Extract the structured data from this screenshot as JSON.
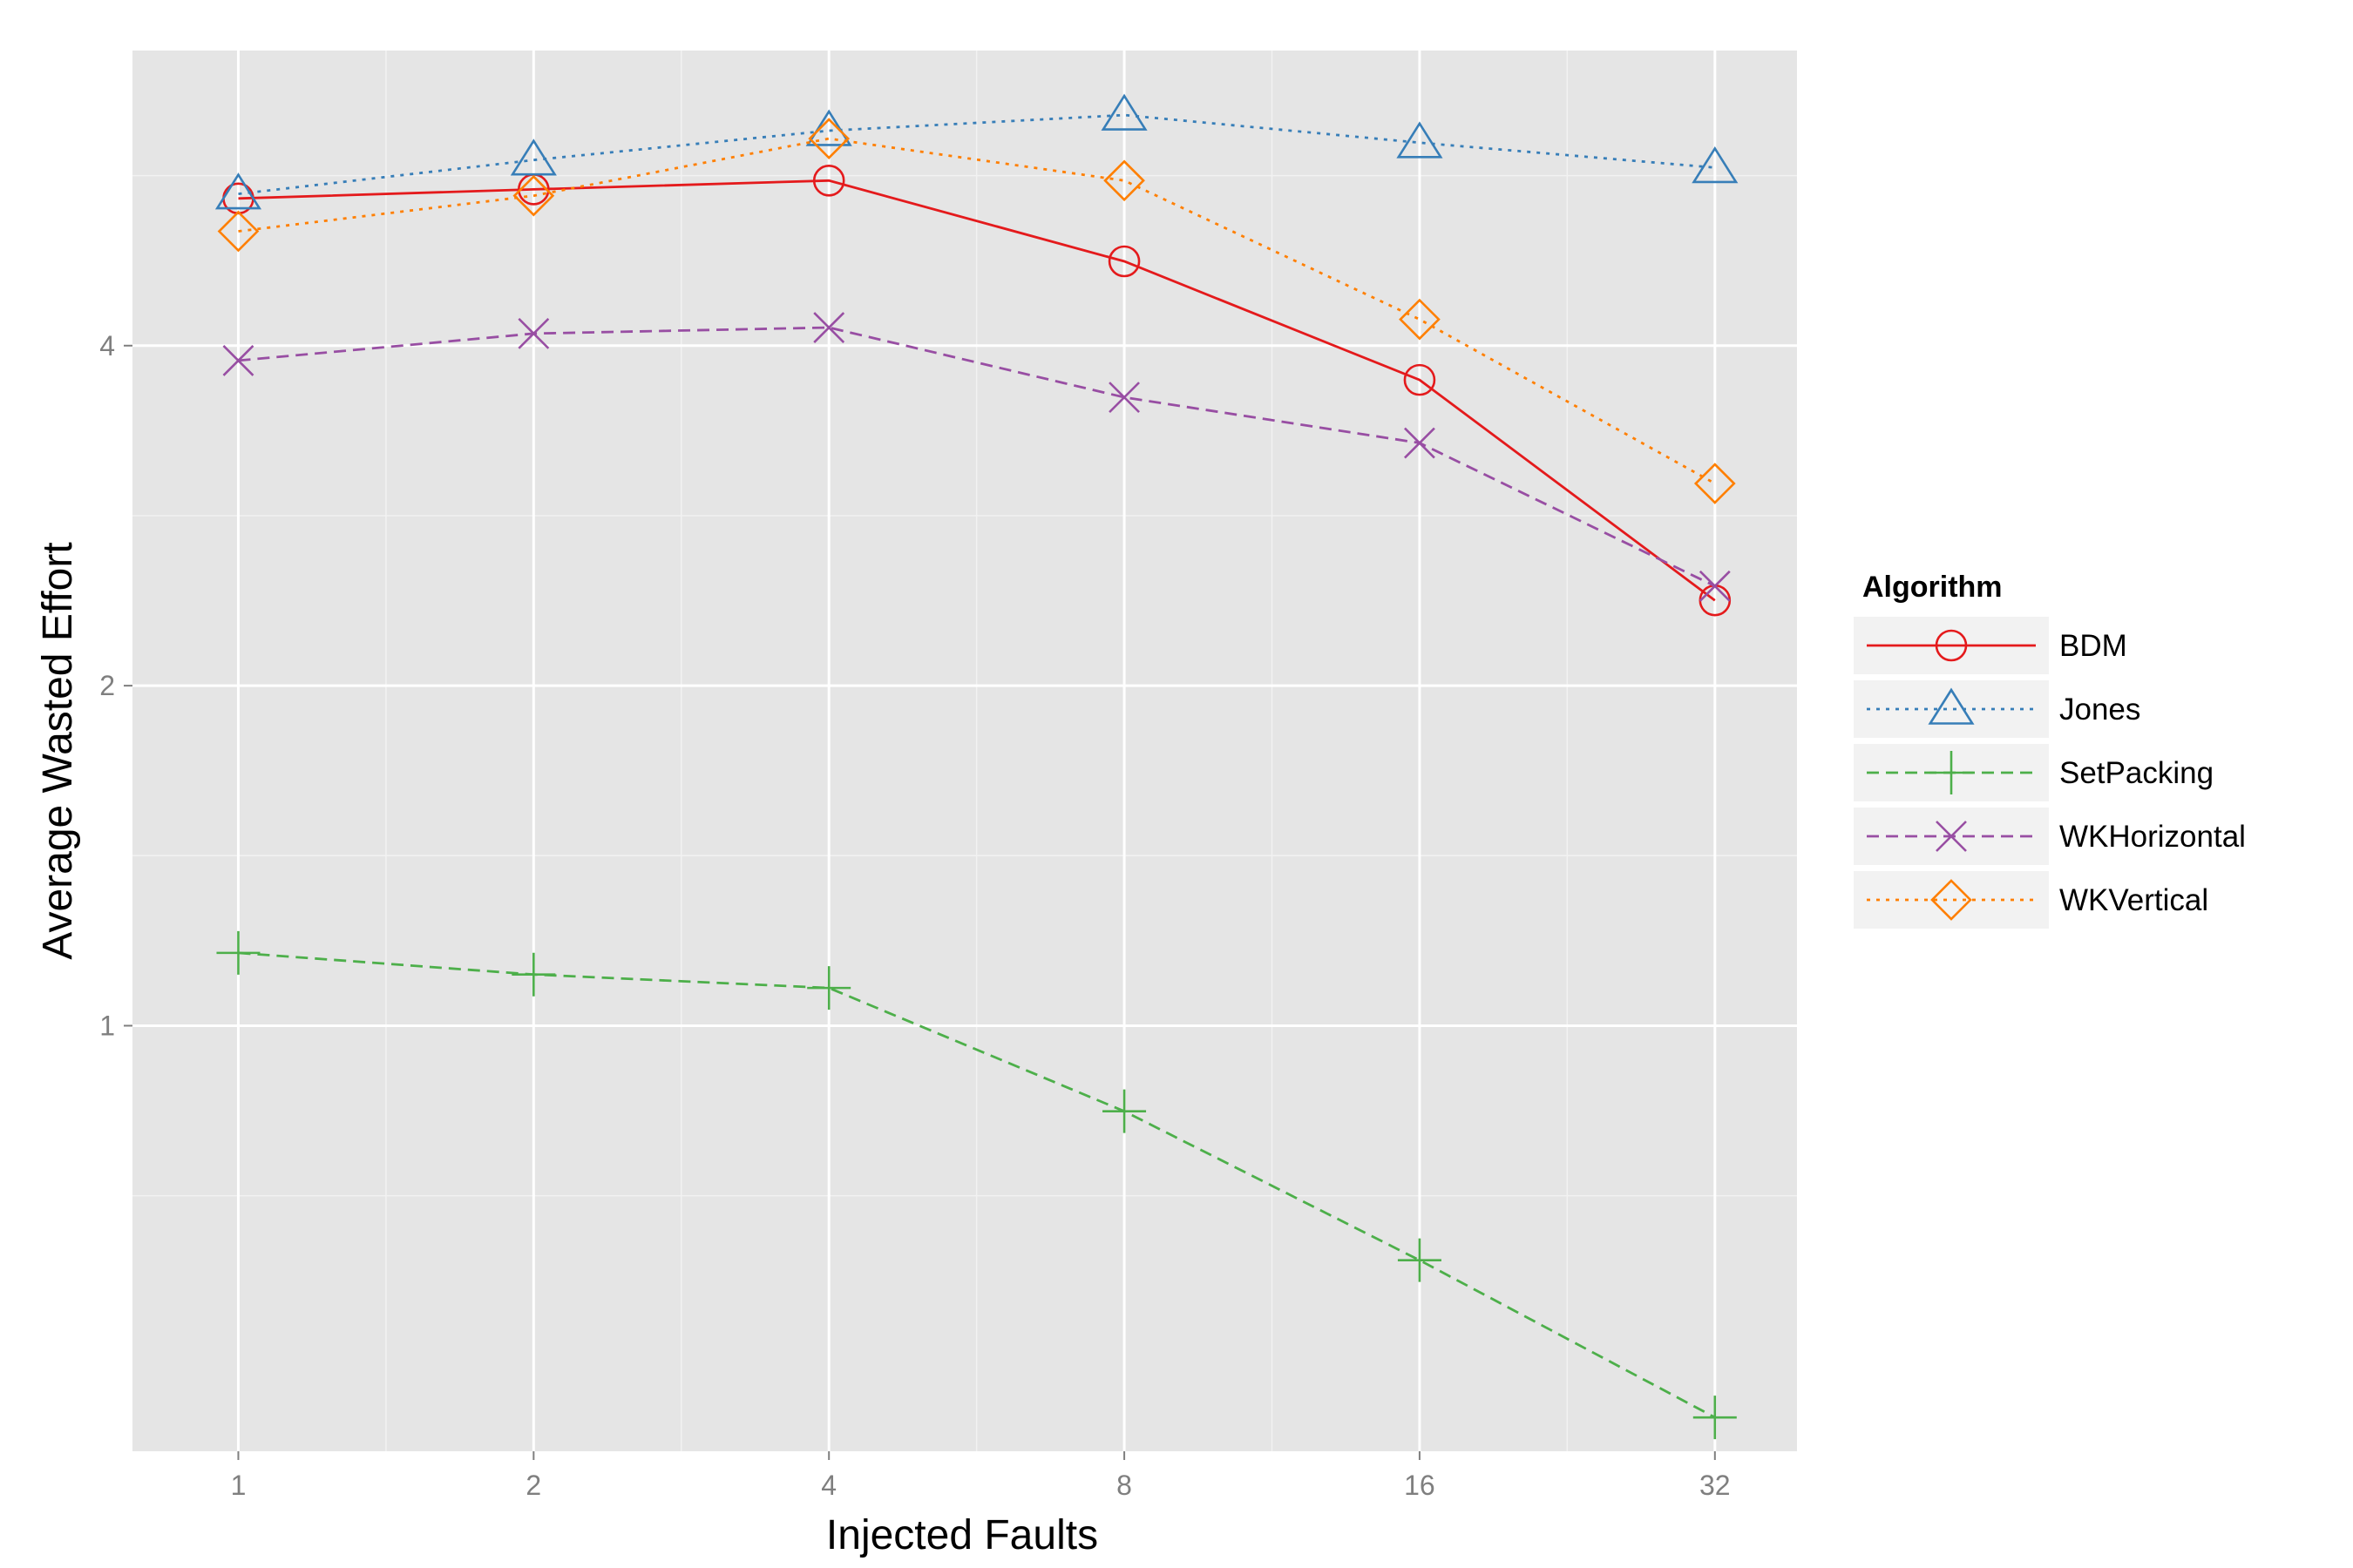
{
  "chart_data": {
    "type": "line",
    "xlabel": "Injected Faults",
    "ylabel": "Average Wasted Effort",
    "x_scale": "log2",
    "y_scale": "log",
    "x": [
      1,
      2,
      4,
      8,
      16,
      32
    ],
    "x_tick_labels": [
      "1",
      "2",
      "4",
      "8",
      "16",
      "32"
    ],
    "y_ticks": [
      1,
      2,
      4
    ],
    "y_tick_labels": [
      "1",
      "2",
      "4"
    ],
    "xlim": [
      0.78,
      38.8
    ],
    "ylim": [
      0.42,
      7.3
    ],
    "grid": true,
    "legend": {
      "title": "Algorithm",
      "position": "right"
    },
    "series": [
      {
        "name": "BDM",
        "color": "#e41a1c",
        "line": "solid",
        "marker": "circle",
        "values": [
          5.4,
          5.5,
          5.6,
          4.75,
          3.73,
          2.38
        ]
      },
      {
        "name": "Jones",
        "color": "#377eb8",
        "line": "dotted",
        "marker": "triangle",
        "values": [
          5.45,
          5.84,
          6.2,
          6.4,
          6.05,
          5.75
        ]
      },
      {
        "name": "SetPacking",
        "color": "#4daf4a",
        "line": "dashed",
        "marker": "plus",
        "values": [
          1.16,
          1.11,
          1.08,
          0.84,
          0.62,
          0.45
        ]
      },
      {
        "name": "WKHorizontal",
        "color": "#984ea3",
        "line": "dashed",
        "marker": "x",
        "values": [
          3.88,
          4.1,
          4.15,
          3.6,
          3.28,
          2.45
        ]
      },
      {
        "name": "WKVertical",
        "color": "#ff7f00",
        "line": "dotted",
        "marker": "diamond",
        "values": [
          5.05,
          5.43,
          6.1,
          5.6,
          4.22,
          3.02
        ]
      }
    ]
  }
}
